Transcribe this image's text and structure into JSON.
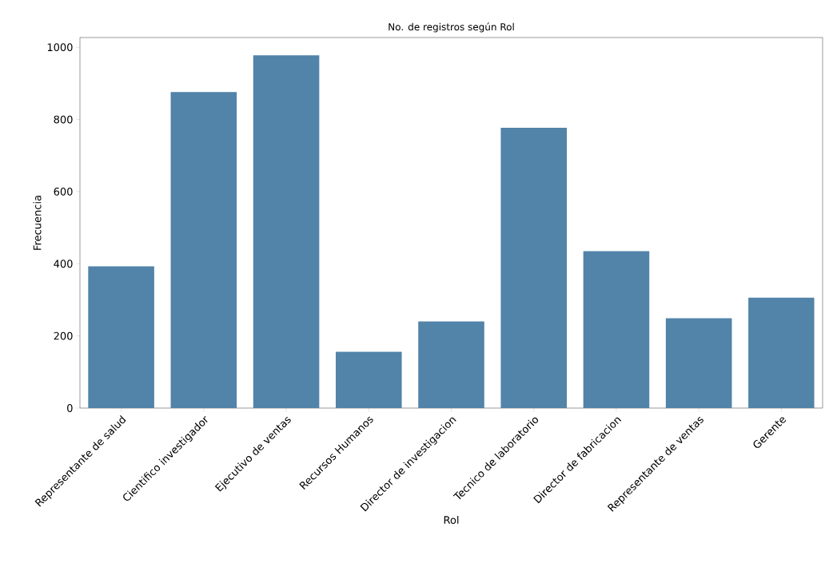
{
  "chart_data": {
    "type": "bar",
    "title": "No. de registros según Rol",
    "xlabel": "Rol",
    "ylabel": "Frecuencia",
    "categories": [
      "Representante de salud",
      "Cientifico investigador",
      "Ejecutivo de ventas",
      "Recursos Humanos",
      "Director de investigacion",
      "Tecnico de laboratorio",
      "Director de fabricacion",
      "Representante de ventas",
      "Gerente"
    ],
    "values": [
      393,
      876,
      978,
      156,
      240,
      777,
      435,
      249,
      306
    ],
    "color": "#5283a9",
    "ylim": [
      0,
      1027
    ],
    "yticks": [
      0,
      200,
      400,
      600,
      800,
      1000
    ]
  }
}
